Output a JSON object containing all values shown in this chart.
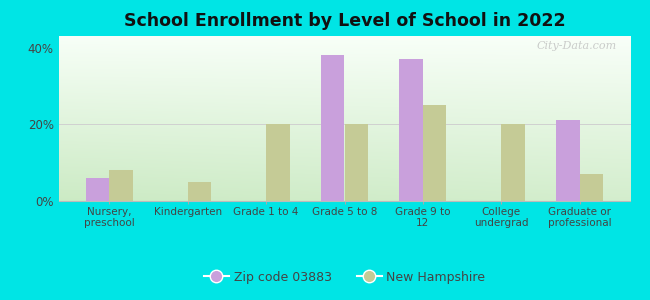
{
  "title": "School Enrollment by Level of School in 2022",
  "categories": [
    "Nursery,\npreschool",
    "Kindergarten",
    "Grade 1 to 4",
    "Grade 5 to 8",
    "Grade 9 to\n12",
    "College\nundergrad",
    "Graduate or\nprofessional"
  ],
  "zip_values": [
    6,
    0,
    0,
    38,
    37,
    0,
    21
  ],
  "nh_values": [
    8,
    5,
    20,
    20,
    25,
    20,
    7
  ],
  "zip_color": "#c9a0dc",
  "nh_color": "#c5cb96",
  "bg_outer": "#00e5e5",
  "title_color": "#111111",
  "tick_color": "#444444",
  "bar_width": 0.3,
  "ylim": [
    0,
    43
  ],
  "yticks": [
    0,
    20,
    40
  ],
  "ytick_labels": [
    "0%",
    "20%",
    "40%"
  ],
  "legend_zip_label": "Zip code 03883",
  "legend_nh_label": "New Hampshire",
  "watermark": "City-Data.com",
  "gradient_top": "#f5fbf5",
  "gradient_bottom": "#c8e8c0",
  "gradient_right": "#f0faf0",
  "grid_color": "#e0e0e0"
}
